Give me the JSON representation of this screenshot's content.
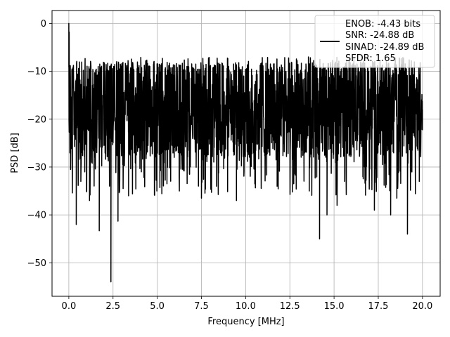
{
  "chart_data": {
    "type": "line",
    "title": "",
    "xlabel": "Frequency [MHz]",
    "ylabel": "PSD [dB]",
    "xlim": [
      -0.95,
      21.0
    ],
    "ylim": [
      -57.0,
      2.7
    ],
    "xticks": [
      0.0,
      2.5,
      5.0,
      7.5,
      10.0,
      12.5,
      15.0,
      17.5,
      20.0
    ],
    "xtick_labels": [
      "0.0",
      "2.5",
      "5.0",
      "7.5",
      "10.0",
      "12.5",
      "15.0",
      "17.5",
      "20.0"
    ],
    "yticks": [
      0,
      -10,
      -20,
      -30,
      -40,
      -50
    ],
    "ytick_labels": [
      "0",
      "−10",
      "−20",
      "−30",
      "−40",
      "−50"
    ],
    "grid": true,
    "legend_position": "top-right",
    "legend": [
      "ENOB: -4.43 bits",
      "SNR: -24.88 dB",
      "SINAD: -24.89 dB",
      "SFDR: 1.65"
    ],
    "series": [
      {
        "color": "#000000",
        "noise_floor_band_db": [
          -28,
          -8
        ],
        "x": [
          0.0,
          0.02,
          0.1,
          0.18,
          0.42,
          0.68,
          0.9,
          1.0,
          1.17,
          1.72,
          2.38,
          2.78,
          3.38,
          4.1,
          4.98,
          5.55,
          6.25,
          7.5,
          8.35,
          9.48,
          10.52,
          11.78,
          12.72,
          13.6,
          14.18,
          14.6,
          15.17,
          15.6,
          16.78,
          17.28,
          18.2,
          18.55,
          19.15,
          19.82,
          20.0
        ],
        "y": [
          0.0,
          -1.8,
          -30.5,
          -9.5,
          -42.0,
          -33.0,
          -31.0,
          -35.0,
          -37.0,
          -43.3,
          -54.0,
          -41.3,
          -36.0,
          -31.0,
          -35.0,
          -33.5,
          -35.0,
          -36.5,
          -34.0,
          -37.0,
          -33.5,
          -34.0,
          -33.5,
          -35.0,
          -45.0,
          -40.0,
          -38.0,
          -33.0,
          -33.5,
          -39.0,
          -40.0,
          -36.5,
          -44.0,
          -33.0,
          -18.0
        ]
      }
    ]
  }
}
